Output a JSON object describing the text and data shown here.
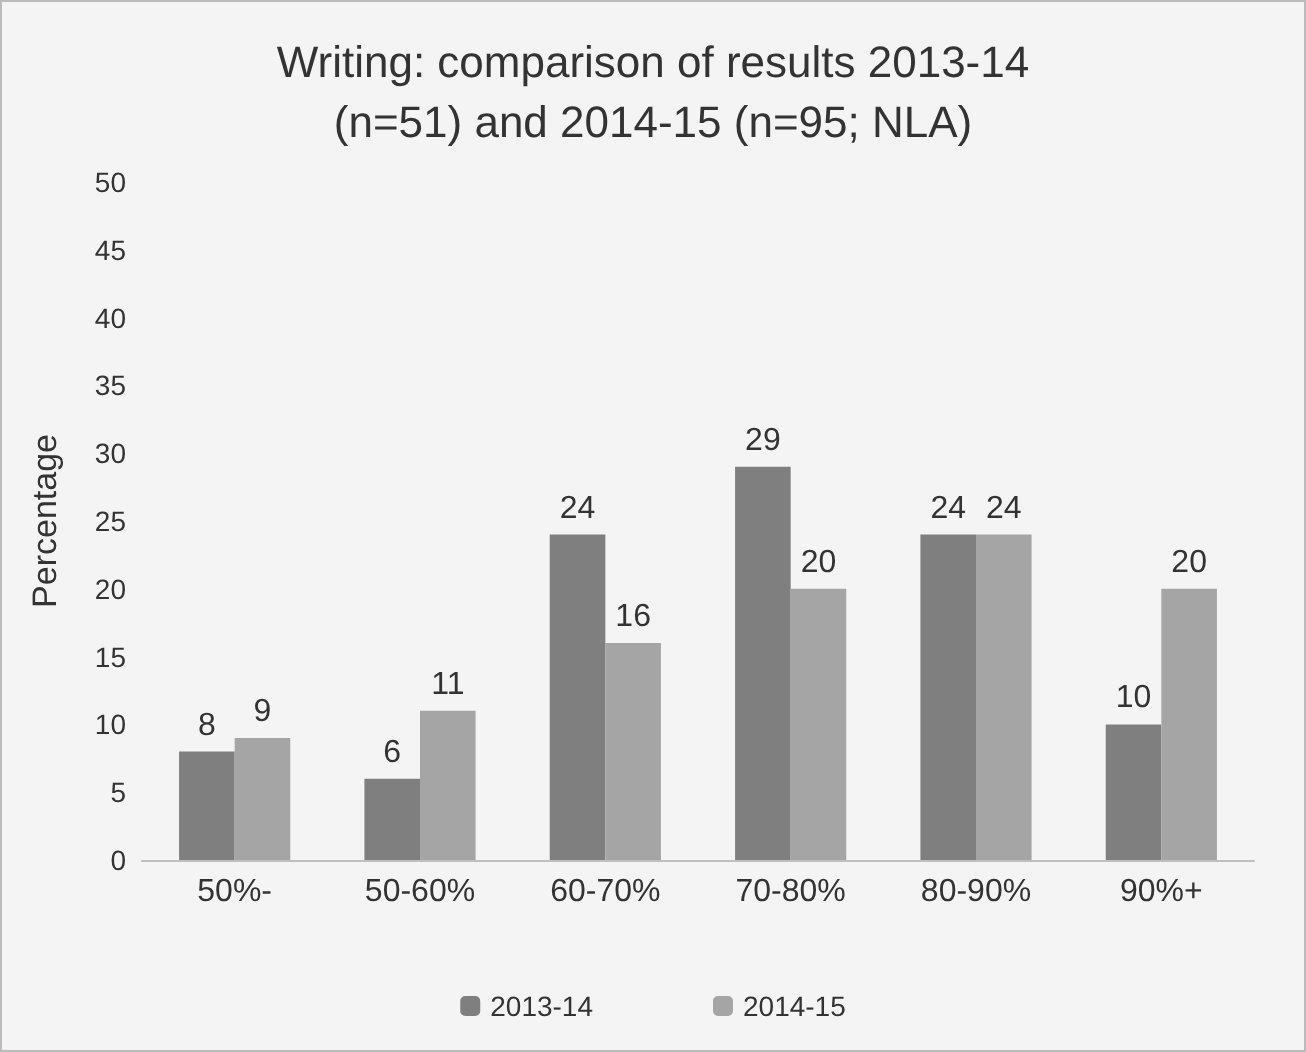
{
  "chart_data": {
    "type": "bar",
    "title": "Writing: comparison of results 2013-14\n(n=51) and 2014-15 (n=95; NLA)",
    "ylabel": "Percentage",
    "categories": [
      "50%-",
      "50-60%",
      "60-70%",
      "70-80%",
      "80-90%",
      "90%+"
    ],
    "series": [
      {
        "name": "2013-14",
        "color": "#7f7f7f",
        "values": [
          8,
          6,
          24,
          29,
          24,
          10
        ]
      },
      {
        "name": "2014-15",
        "color": "#a5a5a5",
        "values": [
          9,
          11,
          16,
          20,
          24,
          20
        ]
      }
    ],
    "ylim": [
      0,
      50
    ],
    "yticks": [
      0,
      5,
      10,
      15,
      20,
      25,
      30,
      35,
      40,
      45,
      50
    ],
    "grid": false,
    "legend": "bottom",
    "data_labels": true
  }
}
